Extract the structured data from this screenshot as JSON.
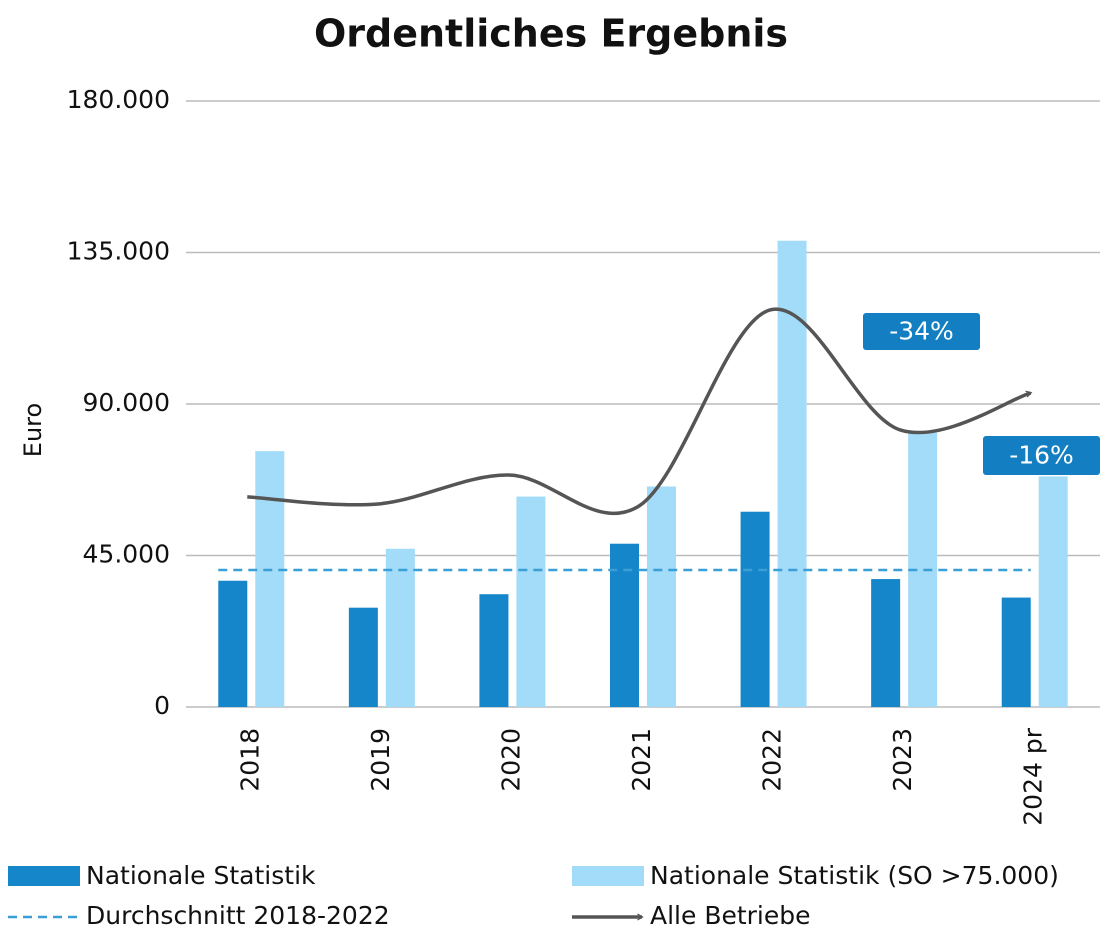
{
  "chart_data": {
    "type": "bar",
    "title": "Ordentliches Ergebnis",
    "y_label": "Euro",
    "categories": [
      "2018",
      "2019",
      "2020",
      "2021",
      "2022",
      "2023",
      "2024 pr"
    ],
    "series": [
      {
        "name": "Nationale Statistik",
        "color": "#1486c9",
        "values": [
          37500,
          29500,
          33500,
          48500,
          58000,
          38000,
          32500
        ]
      },
      {
        "name": "Nationale Statistik (SO >75.000)",
        "color": "#a3dcf8",
        "values": [
          76000,
          47000,
          62500,
          65500,
          138500,
          81500,
          68500
        ]
      }
    ],
    "average": {
      "name": "Durchschnitt 2018-2022",
      "color": "#3a9fd6",
      "value": 40700
    },
    "line": {
      "name": "Alle Betriebe",
      "color": "#555555",
      "values": [
        62400,
        60300,
        68900,
        59700,
        117900,
        82300,
        93300
      ]
    },
    "annotations": [
      "-34%",
      "-16%"
    ],
    "annotation_color": "#137fc2",
    "ylim": [
      0,
      180000
    ],
    "yticks": [
      0,
      {
        "value": 45000,
        "label": "45.000"
      },
      {
        "value": 90000,
        "label": "90.000"
      },
      {
        "value": 135000,
        "label": "135.000"
      },
      {
        "value": 180000,
        "label": "180.000"
      }
    ],
    "grid": true
  }
}
